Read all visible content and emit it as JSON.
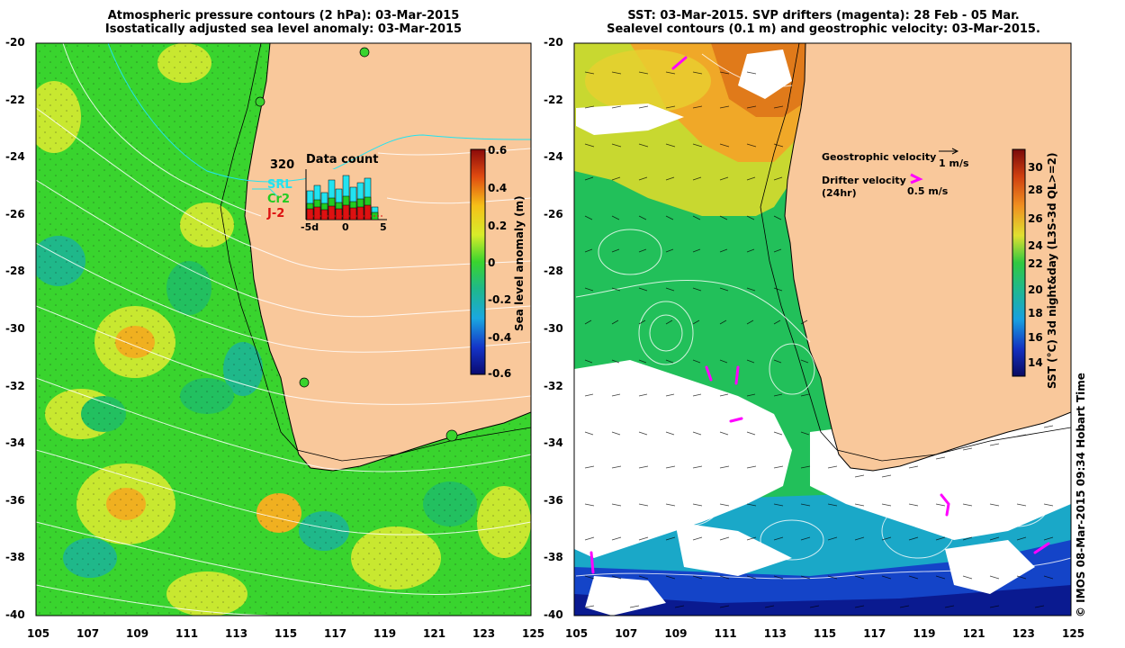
{
  "left_panel": {
    "title_line1": "Atmospheric pressure contours (2 hPa): 03-Mar-2015",
    "title_line2": "Isostatically adjusted sea level anomaly: 03-Mar-2015",
    "colorbar": {
      "label": "Sea level anomaly (m)",
      "ticks": [
        "0.6",
        "0.4",
        "0.2",
        "0",
        "-0.2",
        "-0.4",
        "-0.6"
      ]
    },
    "inset": {
      "title": "Data count",
      "max_label": "320",
      "legend": [
        {
          "name": "SRL",
          "color": "#22e3f0"
        },
        {
          "name": "Cr2",
          "color": "#22cc22"
        },
        {
          "name": "J-2",
          "color": "#dd1111"
        }
      ],
      "xticks": [
        "-5d",
        "0",
        "5"
      ]
    }
  },
  "right_panel": {
    "title_line1": "SST: 03-Mar-2015. SVP drifters (magenta): 28 Feb - 05 Mar.",
    "title_line2": "Sealevel contours (0.1 m) and geostrophic velocity: 03-Mar-2015.",
    "colorbar": {
      "label": "SST (°C) 3d night&day (L3S-3d QL>=2)",
      "ticks": [
        "30",
        "28",
        "26",
        "24",
        "22",
        "20",
        "18",
        "16",
        "14"
      ]
    },
    "legend": {
      "geostrophic_label": "Geostrophic velocity",
      "geostrophic_scale": "1 m/s",
      "drifter_label_line1": "Drifter velocity",
      "drifter_label_line2": "(24hr)",
      "drifter_scale": "0.5 m/s"
    }
  },
  "axes": {
    "lat_ticks": [
      "-20",
      "-22",
      "-24",
      "-26",
      "-28",
      "-30",
      "-32",
      "-34",
      "-36",
      "-38",
      "-40"
    ],
    "lon_ticks": [
      "105",
      "107",
      "109",
      "111",
      "113",
      "115",
      "117",
      "119",
      "121",
      "123",
      "125"
    ]
  },
  "credit": "© IMOS 08-Mar-2015 09:34 Hobart Time",
  "colors": {
    "land": "#f9c89b",
    "ocean_green": "#39d42e",
    "ocean_yellow": "#c8e830",
    "sst_green": "#22c05a",
    "sst_orange": "#f08a1e",
    "drifter": "#ff00ff"
  }
}
